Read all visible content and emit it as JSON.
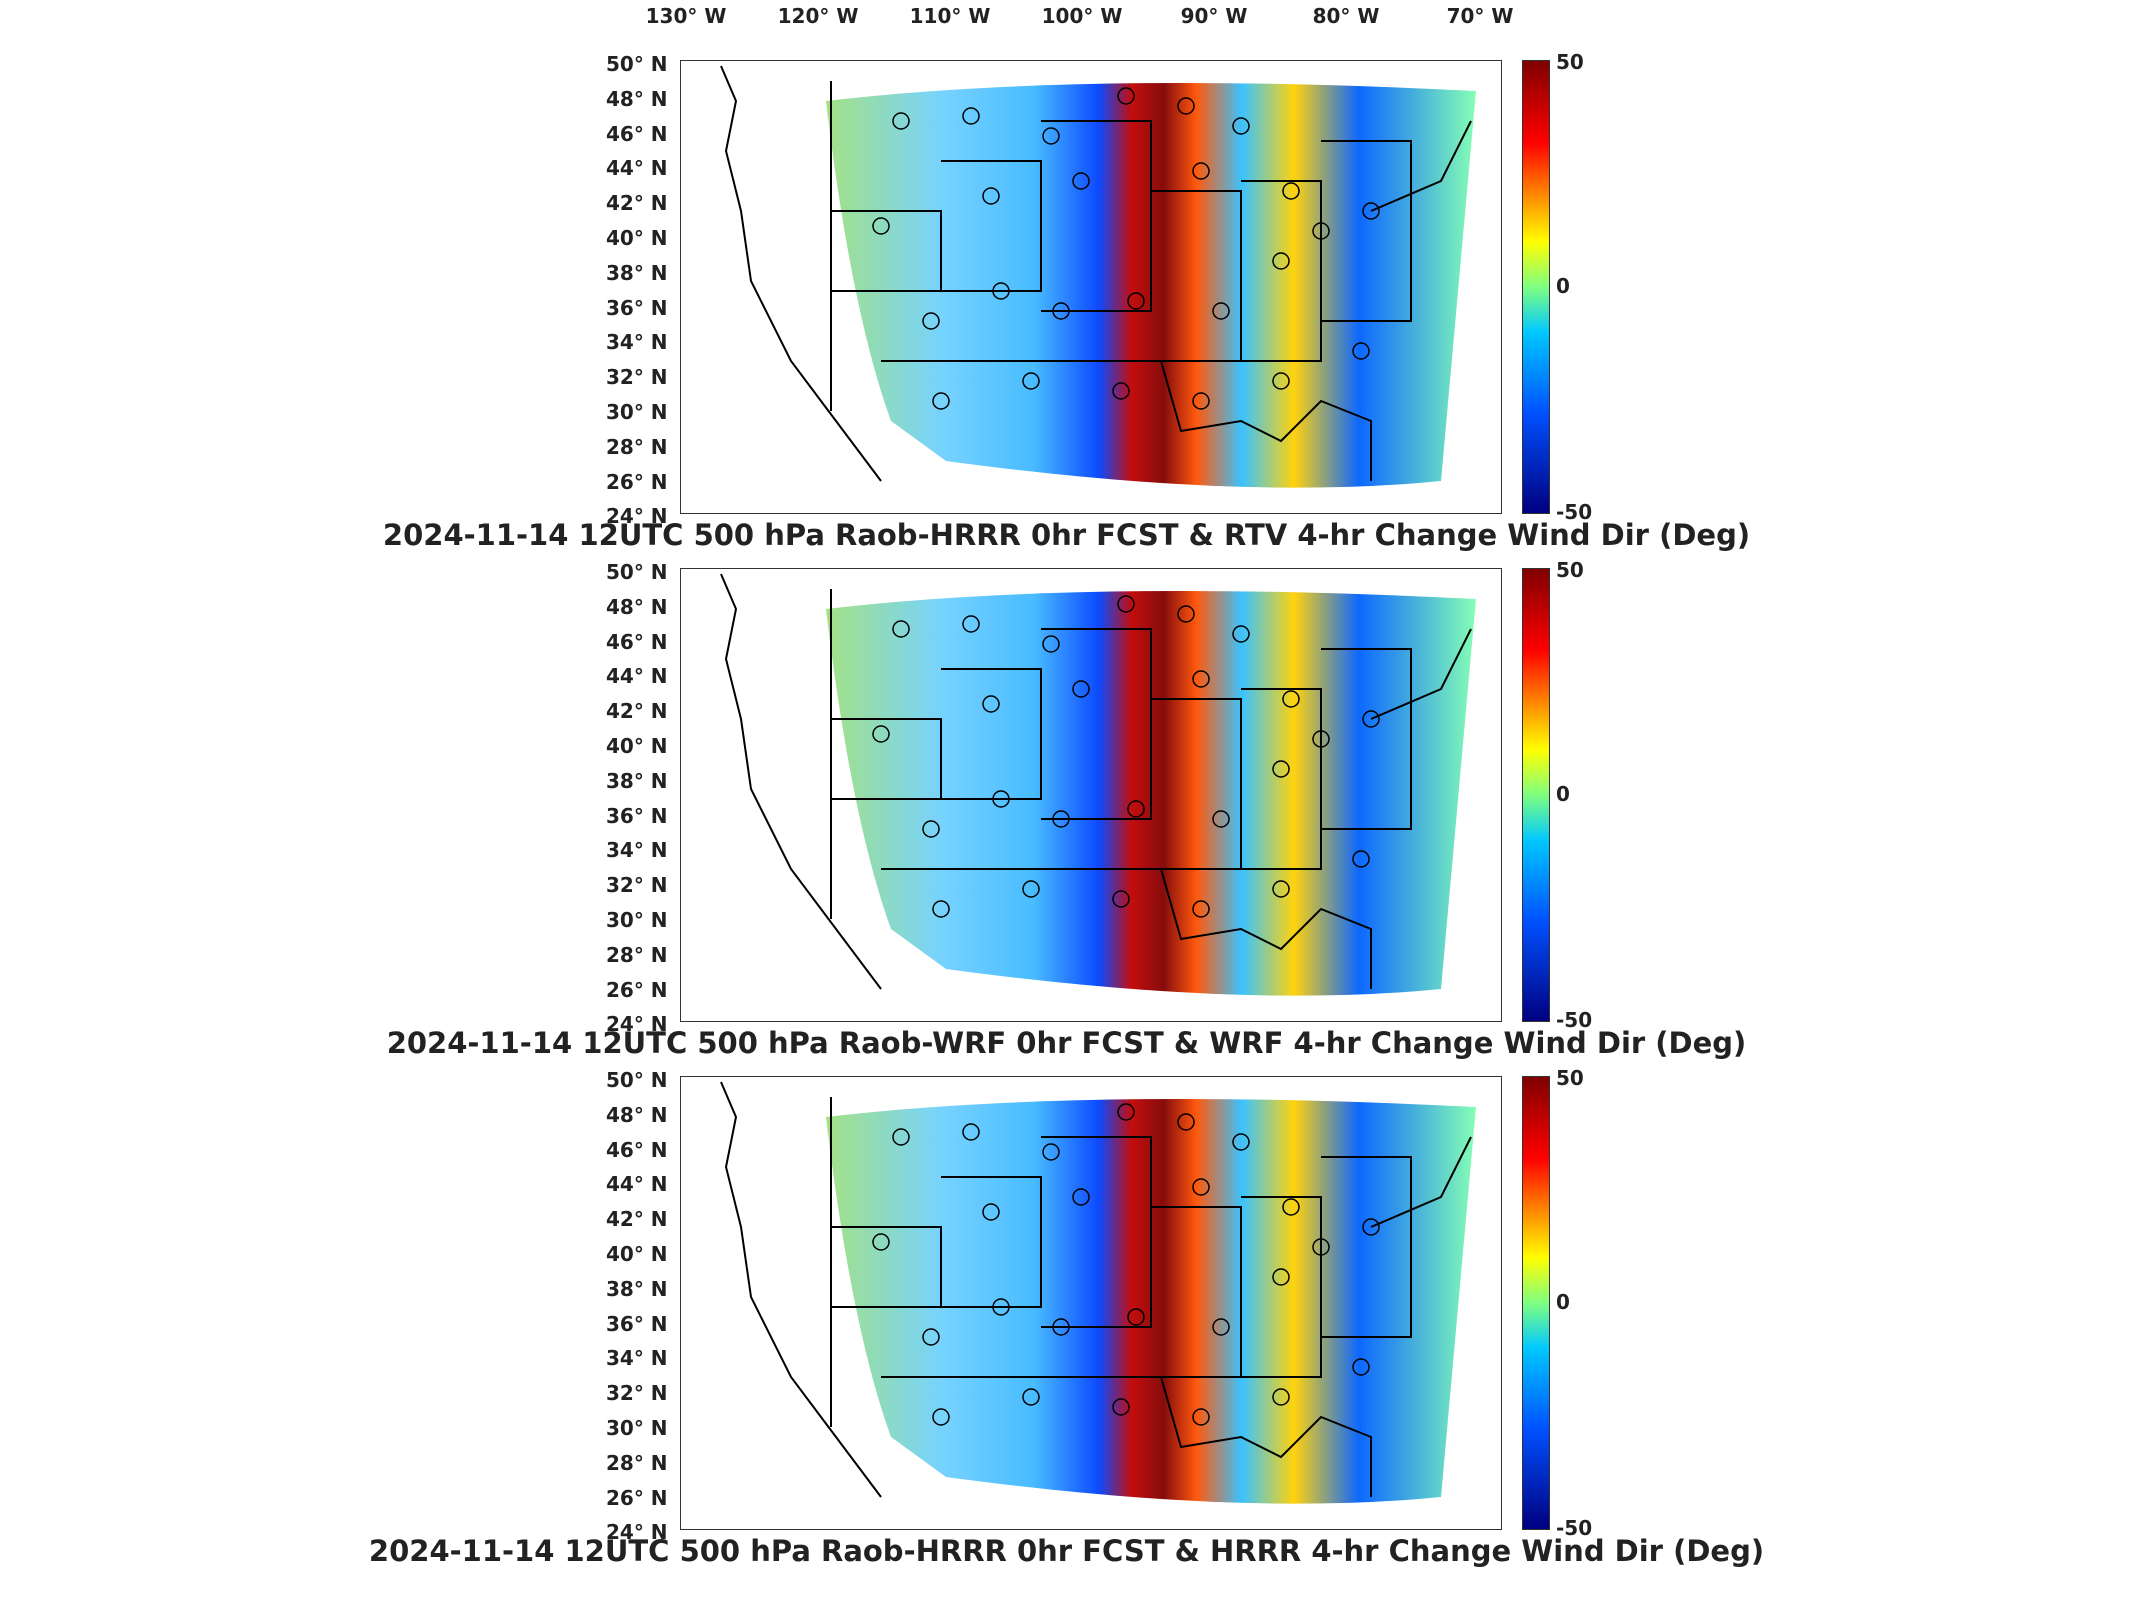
{
  "lon_labels": [
    "130° W",
    "120° W",
    "110° W",
    "100° W",
    "90° W",
    "80° W",
    "70° W"
  ],
  "lat_labels": [
    "50° N",
    "48° N",
    "46° N",
    "44° N",
    "42° N",
    "40° N",
    "38° N",
    "36° N",
    "34° N",
    "32° N",
    "30° N",
    "28° N",
    "26° N",
    "24° N"
  ],
  "colorbar": {
    "max": "50",
    "mid": "0",
    "min": "-50"
  },
  "panels": [
    {
      "title": "2024-11-14 12UTC 500 hPa Raob-HRRR 0hr FCST & RTV 4-hr Change Wind Dir (Deg)"
    },
    {
      "title": "2024-11-14 12UTC 500 hPa Raob-WRF 0hr FCST & WRF 4-hr Change Wind Dir (Deg)"
    },
    {
      "title": "2024-11-14 12UTC 500 hPa Raob-HRRR 0hr FCST & HRRR 4-hr Change Wind Dir (Deg)"
    }
  ],
  "colors": {
    "positive_max": "#800000",
    "zero": "#7fff7f",
    "negative_max": "#000080"
  }
}
